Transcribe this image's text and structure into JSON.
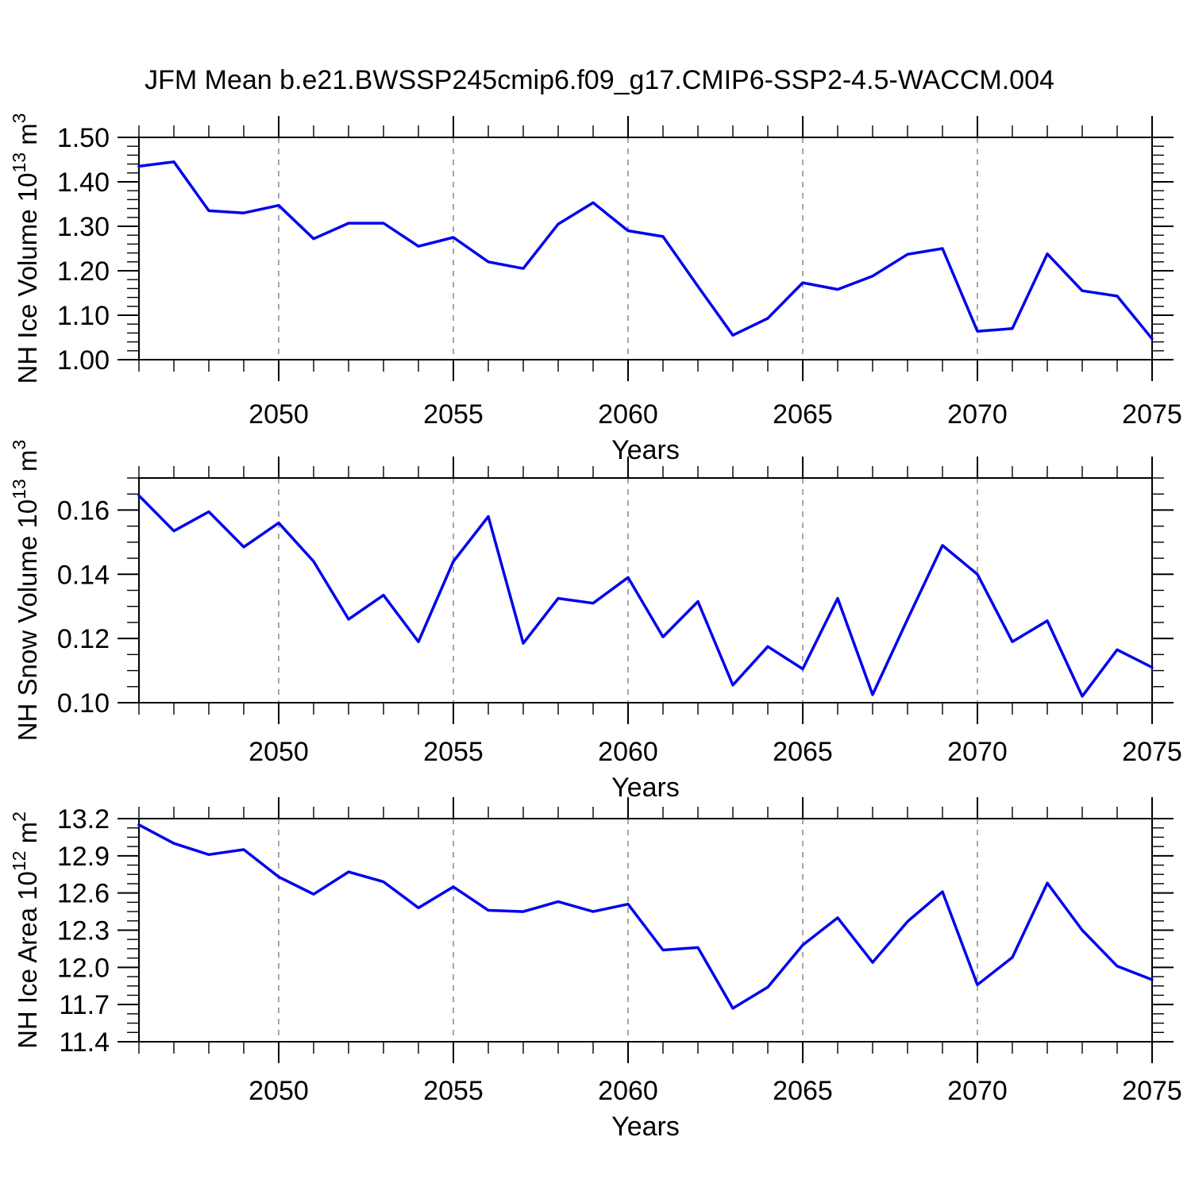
{
  "title": "JFM Mean b.e21.BWSSP245cmip6.f09_g17.CMIP6-SSP2-4.5-WACCM.004",
  "xlabel": "Years",
  "colors": {
    "line": "#0000ee",
    "grid": "#888888",
    "axis": "#000000",
    "text": "#000000",
    "background": "#ffffff"
  },
  "x_axis": {
    "start_year": 2046,
    "end_year": 2075,
    "labeled_ticks": [
      2050,
      2055,
      2060,
      2065,
      2070,
      2075
    ],
    "grid_years": [
      2050,
      2055,
      2060,
      2065,
      2070
    ],
    "minor_tick_every": 1
  },
  "chart_data": [
    {
      "type": "line",
      "name": "nh-ice-volume",
      "title": "JFM Mean b.e21.BWSSP245cmip6.f09_g17.CMIP6-SSP2-4.5-WACCM.004",
      "xlabel": "Years",
      "ylabel": "NH Ice Volume 10^13 m^3",
      "ylabel_parts": [
        {
          "t": "NH Ice Volume 10"
        },
        {
          "t": "13",
          "sup": true
        },
        {
          "t": " m"
        },
        {
          "t": "3",
          "sup": true
        }
      ],
      "ylim": [
        1.0,
        1.5
      ],
      "yticks": [
        {
          "v": 1.0,
          "label": "1.00"
        },
        {
          "v": 1.1,
          "label": "1.10"
        },
        {
          "v": 1.2,
          "label": "1.20"
        },
        {
          "v": 1.3,
          "label": "1.30"
        },
        {
          "v": 1.4,
          "label": "1.40"
        },
        {
          "v": 1.5,
          "label": "1.50"
        }
      ],
      "minor_step": 0.02,
      "grid": "x-dashed",
      "legend": "none",
      "x": [
        2046,
        2047,
        2048,
        2049,
        2050,
        2051,
        2052,
        2053,
        2054,
        2055,
        2056,
        2057,
        2058,
        2059,
        2060,
        2061,
        2062,
        2063,
        2064,
        2065,
        2066,
        2067,
        2068,
        2069,
        2070,
        2071,
        2072,
        2073,
        2074,
        2075
      ],
      "series": [
        {
          "name": "NH Ice Volume",
          "values": [
            1.435,
            1.445,
            1.335,
            1.33,
            1.347,
            1.272,
            1.307,
            1.307,
            1.255,
            1.275,
            1.22,
            1.205,
            1.305,
            1.353,
            1.29,
            1.277,
            1.165,
            1.055,
            1.093,
            1.173,
            1.158,
            1.188,
            1.237,
            1.25,
            1.064,
            1.07,
            1.238,
            1.155,
            1.143,
            1.047
          ]
        }
      ]
    },
    {
      "type": "line",
      "name": "nh-snow-volume",
      "xlabel": "Years",
      "ylabel": "NH Snow Volume 10^13 m^3",
      "ylabel_parts": [
        {
          "t": "NH Snow Volume 10"
        },
        {
          "t": "13",
          "sup": true
        },
        {
          "t": " m"
        },
        {
          "t": "3",
          "sup": true
        }
      ],
      "ylim": [
        0.1,
        0.17
      ],
      "yticks": [
        {
          "v": 0.1,
          "label": "0.10"
        },
        {
          "v": 0.12,
          "label": "0.12"
        },
        {
          "v": 0.14,
          "label": "0.14"
        },
        {
          "v": 0.16,
          "label": "0.16"
        }
      ],
      "minor_step": 0.005,
      "grid": "x-dashed",
      "legend": "none",
      "x": [
        2046,
        2047,
        2048,
        2049,
        2050,
        2051,
        2052,
        2053,
        2054,
        2055,
        2056,
        2057,
        2058,
        2059,
        2060,
        2061,
        2062,
        2063,
        2064,
        2065,
        2066,
        2067,
        2068,
        2069,
        2070,
        2071,
        2072,
        2073,
        2074,
        2075
      ],
      "series": [
        {
          "name": "NH Snow Volume",
          "values": [
            0.1645,
            0.1535,
            0.1595,
            0.1485,
            0.156,
            0.144,
            0.126,
            0.1335,
            0.119,
            0.144,
            0.158,
            0.1185,
            0.1325,
            0.131,
            0.139,
            0.1205,
            0.1315,
            0.1055,
            0.1175,
            0.1105,
            0.1325,
            0.1025,
            0.126,
            0.149,
            0.14,
            0.119,
            0.1255,
            0.102,
            0.1165,
            0.111
          ]
        }
      ]
    },
    {
      "type": "line",
      "name": "nh-ice-area",
      "xlabel": "Years",
      "ylabel": "NH Ice Area 10^12 m^2",
      "ylabel_parts": [
        {
          "t": "NH Ice Area 10"
        },
        {
          "t": "12",
          "sup": true
        },
        {
          "t": " m"
        },
        {
          "t": "2",
          "sup": true
        }
      ],
      "ylim": [
        11.4,
        13.2
      ],
      "yticks": [
        {
          "v": 11.4,
          "label": "11.4"
        },
        {
          "v": 11.7,
          "label": "11.7"
        },
        {
          "v": 12.0,
          "label": "12.0"
        },
        {
          "v": 12.3,
          "label": "12.3"
        },
        {
          "v": 12.6,
          "label": "12.6"
        },
        {
          "v": 12.9,
          "label": "12.9"
        },
        {
          "v": 13.2,
          "label": "13.2"
        }
      ],
      "minor_step": 0.075,
      "grid": "x-dashed",
      "legend": "none",
      "x": [
        2046,
        2047,
        2048,
        2049,
        2050,
        2051,
        2052,
        2053,
        2054,
        2055,
        2056,
        2057,
        2058,
        2059,
        2060,
        2061,
        2062,
        2063,
        2064,
        2065,
        2066,
        2067,
        2068,
        2069,
        2070,
        2071,
        2072,
        2073,
        2074,
        2075
      ],
      "series": [
        {
          "name": "NH Ice Area",
          "values": [
            13.15,
            13.0,
            12.91,
            12.95,
            12.73,
            12.59,
            12.77,
            12.69,
            12.48,
            12.65,
            12.46,
            12.45,
            12.53,
            12.45,
            12.51,
            12.14,
            12.16,
            11.67,
            11.84,
            12.18,
            12.4,
            12.04,
            12.37,
            12.61,
            11.86,
            12.08,
            12.68,
            12.3,
            12.01,
            11.9
          ]
        }
      ]
    }
  ]
}
